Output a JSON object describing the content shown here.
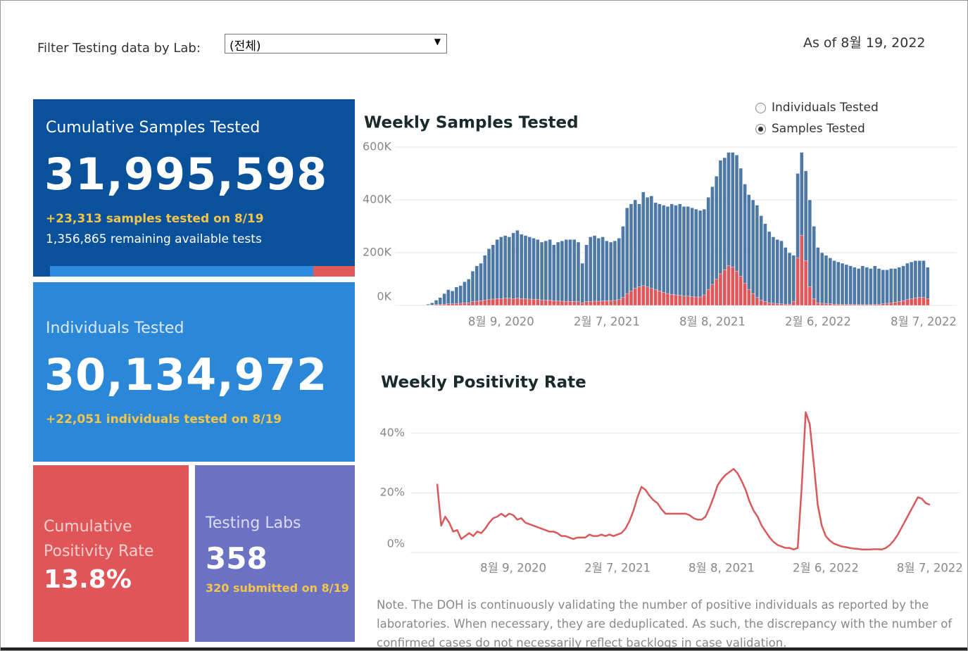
{
  "filter": {
    "label": "Filter Testing data by Lab:",
    "value": "(전체)"
  },
  "as_of": "As of 8월 19, 2022",
  "cards": {
    "samples": {
      "title": "Cumulative Samples Tested",
      "value": "31,995,598",
      "note": "+23,313 samples tested on 8/19",
      "remaining": "1,356,865 remaining available tests"
    },
    "individuals": {
      "title": "Individuals Tested",
      "value": "30,134,972",
      "note": "+22,051  individuals  tested on 8/19"
    },
    "positivity": {
      "title": "Cumulative Positivity Rate",
      "value": "13.8%"
    },
    "labs": {
      "title": "Testing Labs",
      "value": "358",
      "note": "320 submitted on 8/19"
    }
  },
  "measure_options": [
    "Individuals Tested",
    "Samples Tested"
  ],
  "selected_option": 1,
  "chart_data": [
    {
      "type": "bar",
      "title": "Weekly Samples Tested",
      "categories": [
        null,
        null,
        null,
        null,
        null,
        null,
        null,
        null,
        null,
        null,
        null,
        null,
        null,
        null,
        null,
        null,
        null,
        null,
        "8월 9, 2020",
        null,
        null,
        null,
        null,
        null,
        null,
        null,
        null,
        null,
        null,
        null,
        null,
        null,
        null,
        null,
        null,
        null,
        null,
        null,
        null,
        null,
        null,
        null,
        null,
        null,
        "2월 7, 2021",
        null,
        null,
        null,
        null,
        null,
        null,
        null,
        null,
        null,
        null,
        null,
        null,
        null,
        null,
        null,
        null,
        null,
        null,
        null,
        null,
        null,
        null,
        null,
        null,
        null,
        "8월 8, 2021",
        null,
        null,
        null,
        null,
        null,
        null,
        null,
        null,
        null,
        null,
        null,
        null,
        null,
        null,
        null,
        null,
        null,
        null,
        null,
        null,
        null,
        null,
        null,
        null,
        null,
        "2월 6, 2022",
        null,
        null,
        null,
        null,
        null,
        null,
        null,
        null,
        null,
        null,
        null,
        null,
        null,
        null,
        null,
        null,
        null,
        null,
        null,
        null,
        null,
        null,
        null,
        null,
        null,
        "8월 7, 2022",
        null
      ],
      "series": [
        {
          "color": "#4e79a7",
          "values": [
            5000,
            10000,
            20000,
            30000,
            45000,
            60000,
            55000,
            70000,
            75000,
            90000,
            100000,
            130000,
            150000,
            160000,
            190000,
            215000,
            230000,
            250000,
            260000,
            265000,
            260000,
            275000,
            285000,
            270000,
            265000,
            260000,
            255000,
            250000,
            240000,
            245000,
            250000,
            230000,
            240000,
            245000,
            250000,
            250000,
            250000,
            240000,
            160000,
            230000,
            260000,
            265000,
            255000,
            260000,
            245000,
            240000,
            245000,
            255000,
            300000,
            370000,
            385000,
            400000,
            385000,
            430000,
            410000,
            415000,
            390000,
            385000,
            380000,
            375000,
            385000,
            380000,
            385000,
            375000,
            375000,
            370000,
            365000,
            360000,
            365000,
            410000,
            450000,
            490000,
            550000,
            560000,
            580000,
            580000,
            570000,
            520000,
            460000,
            420000,
            400000,
            380000,
            340000,
            310000,
            280000,
            260000,
            250000,
            245000,
            220000,
            200000,
            190000,
            500000,
            580000,
            510000,
            400000,
            300000,
            220000,
            200000,
            190000,
            180000,
            170000,
            165000,
            160000,
            155000,
            150000,
            145000,
            140000,
            150000,
            145000,
            140000,
            150000,
            140000,
            135000,
            135000,
            140000,
            140000,
            145000,
            150000,
            160000,
            165000,
            170000,
            170000,
            170000,
            145000
          ]
        },
        {
          "color": "#e15759",
          "values": [
            1000,
            2000,
            3000,
            4000,
            5000,
            6000,
            6000,
            7000,
            8000,
            9000,
            10000,
            14000,
            16000,
            18000,
            20000,
            22000,
            24000,
            25000,
            26000,
            27000,
            27000,
            26000,
            27000,
            26000,
            25000,
            24000,
            23000,
            22000,
            21000,
            20000,
            20000,
            18000,
            17000,
            16000,
            15000,
            15000,
            15000,
            14000,
            10000,
            14000,
            15000,
            16000,
            16000,
            17000,
            18000,
            18000,
            19000,
            22000,
            30000,
            45000,
            55000,
            65000,
            70000,
            75000,
            70000,
            65000,
            60000,
            55000,
            50000,
            45000,
            42000,
            40000,
            38000,
            36000,
            35000,
            33000,
            32000,
            32000,
            40000,
            60000,
            80000,
            100000,
            120000,
            135000,
            150000,
            145000,
            130000,
            110000,
            85000,
            60000,
            45000,
            30000,
            20000,
            14000,
            10000,
            8000,
            7000,
            6000,
            5000,
            5000,
            15000,
            180000,
            265000,
            170000,
            70000,
            25000,
            10000,
            8000,
            7000,
            6000,
            5000,
            5000,
            4000,
            4000,
            4000,
            3000,
            3000,
            3000,
            3000,
            3000,
            4000,
            5000,
            6000,
            8000,
            10000,
            12000,
            15000,
            18000,
            22000,
            25000,
            28000,
            30000,
            30000,
            25000
          ]
        }
      ],
      "ylim": [
        0,
        600000
      ],
      "yticks": [
        {
          "value": 0,
          "label": "0K"
        },
        {
          "value": 200000,
          "label": "200K"
        },
        {
          "value": 400000,
          "label": "400K"
        },
        {
          "value": 600000,
          "label": "600K"
        }
      ],
      "grid": true
    },
    {
      "type": "line",
      "title": "Weekly Positivity Rate",
      "categories": [
        null,
        null,
        null,
        null,
        null,
        null,
        null,
        null,
        null,
        null,
        null,
        null,
        null,
        null,
        null,
        null,
        null,
        null,
        null,
        "8월 9, 2020",
        null,
        null,
        null,
        null,
        null,
        null,
        null,
        null,
        null,
        null,
        null,
        null,
        null,
        null,
        null,
        null,
        null,
        null,
        null,
        null,
        null,
        null,
        null,
        null,
        null,
        "2월 7, 2021",
        null,
        null,
        null,
        null,
        null,
        null,
        null,
        null,
        null,
        null,
        null,
        null,
        null,
        null,
        null,
        null,
        null,
        null,
        null,
        null,
        null,
        null,
        null,
        null,
        null,
        "8월 8, 2021",
        null,
        null,
        null,
        null,
        null,
        null,
        null,
        null,
        null,
        null,
        null,
        null,
        null,
        null,
        null,
        null,
        null,
        null,
        null,
        null,
        null,
        null,
        null,
        null,
        null,
        "2월 6, 2022",
        null,
        null,
        null,
        null,
        null,
        null,
        null,
        null,
        null,
        null,
        null,
        null,
        null,
        null,
        null,
        null,
        null,
        null,
        null,
        null,
        null,
        null,
        null,
        null,
        null,
        "8월 7, 2022"
      ],
      "series": [
        {
          "color": "#d9595b",
          "values": [
            23,
            9,
            12,
            10,
            7,
            7.5,
            4.5,
            5.5,
            6.5,
            5.5,
            7,
            6.5,
            8,
            10,
            11.5,
            12,
            13,
            12,
            13,
            12.5,
            11,
            11.5,
            10,
            9.5,
            9,
            8.5,
            8,
            7.5,
            7,
            7,
            6.5,
            5.5,
            5.5,
            5,
            4.5,
            5,
            5,
            5,
            6,
            5.5,
            5.5,
            6,
            5.5,
            6,
            5.5,
            6,
            6.5,
            8,
            10.5,
            14,
            18.5,
            22,
            21,
            19,
            17.5,
            16.5,
            14.5,
            13,
            13,
            13,
            13,
            13,
            13,
            12.5,
            11.5,
            11,
            11,
            12,
            15,
            18.5,
            22.5,
            24.5,
            26,
            27,
            28,
            26.5,
            24,
            21,
            17,
            14,
            12,
            9,
            7,
            5,
            3.5,
            2.5,
            2,
            1.5,
            1.5,
            1,
            1.5,
            22,
            47,
            43,
            30,
            16,
            9,
            5.5,
            4,
            3,
            2.5,
            2,
            1.8,
            1.5,
            1.3,
            1.2,
            1,
            1,
            1,
            1.1,
            1.1,
            1,
            1.5,
            2.5,
            4,
            6,
            8.5,
            11,
            13.5,
            16,
            18.5,
            18,
            16.5,
            16
          ]
        }
      ],
      "ylim": [
        0,
        50
      ],
      "yticks": [
        {
          "value": 0,
          "label": "0%"
        },
        {
          "value": 20,
          "label": "20%"
        },
        {
          "value": 40,
          "label": "40%"
        }
      ],
      "grid": true
    }
  ],
  "note": "Note. The DOH is continuously validating the number of positive individuals as reported by the laboratories. When necessary, they are deduplicated. As such, the discrepancy with the number of confirmed cases do not necessarily reflect backlogs in case validation."
}
